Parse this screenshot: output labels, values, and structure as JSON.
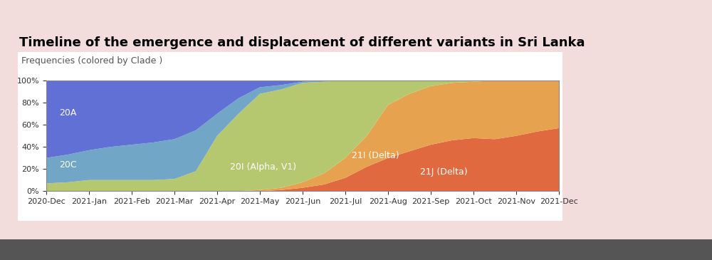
{
  "chart_data": {
    "type": "area",
    "stacked": true,
    "grid": false,
    "title": "Timeline of the emergence and displacement of different variants in Sri Lanka",
    "subtitle": "Frequencies (colored by Clade )",
    "x": [
      "2020-Dec",
      null,
      "2021-Jan",
      null,
      "2021-Feb",
      null,
      "2021-Mar",
      null,
      "2021-Apr",
      null,
      "2021-May",
      null,
      "2021-Jun",
      null,
      "2021-Jul",
      null,
      "2021-Aug",
      null,
      "2021-Sep",
      null,
      "2021-Oct",
      null,
      "2021-Nov",
      null,
      "2021-Dec"
    ],
    "series": [
      {
        "name": "21J (Delta)",
        "color": "#e0693f",
        "values": [
          0,
          0,
          0,
          0,
          0,
          0,
          0,
          0,
          0,
          0,
          0,
          1,
          3,
          6,
          12,
          22,
          30,
          36,
          42,
          46,
          48,
          47,
          50,
          54,
          57
        ]
      },
      {
        "name": "21I (Delta)",
        "color": "#e6a24f",
        "values": [
          0,
          0,
          0,
          0,
          0,
          0,
          0,
          0,
          0,
          0,
          1,
          2,
          5,
          10,
          18,
          28,
          48,
          52,
          53,
          52,
          51,
          53,
          50,
          46,
          43
        ]
      },
      {
        "name": "20I (Alpha, V1)",
        "color": "#b6c86f",
        "values": [
          7,
          8,
          10,
          10,
          10,
          10,
          11,
          18,
          50,
          70,
          87,
          89,
          90,
          83,
          70,
          50,
          22,
          12,
          5,
          2,
          1,
          0,
          0,
          0,
          0
        ]
      },
      {
        "name": "20C",
        "color": "#72a6c6",
        "values": [
          23,
          25,
          27,
          30,
          32,
          34,
          36,
          37,
          20,
          14,
          6,
          4,
          1,
          1,
          0,
          0,
          0,
          0,
          0,
          0,
          0,
          0,
          0,
          0,
          0
        ]
      },
      {
        "name": "20A",
        "color": "#6170d4",
        "values": [
          70,
          67,
          63,
          60,
          58,
          56,
          53,
          45,
          30,
          16,
          6,
          4,
          1,
          0,
          0,
          0,
          0,
          0,
          0,
          0,
          0,
          0,
          0,
          0,
          0
        ]
      }
    ],
    "ylim": [
      0,
      100
    ],
    "yticks": [
      {
        "value": 0,
        "label": "0%"
      },
      {
        "value": 20,
        "label": "20%"
      },
      {
        "value": 40,
        "label": "40%"
      },
      {
        "value": 60,
        "label": "60%"
      },
      {
        "value": 80,
        "label": "80%"
      },
      {
        "value": 100,
        "label": "100%"
      }
    ]
  }
}
